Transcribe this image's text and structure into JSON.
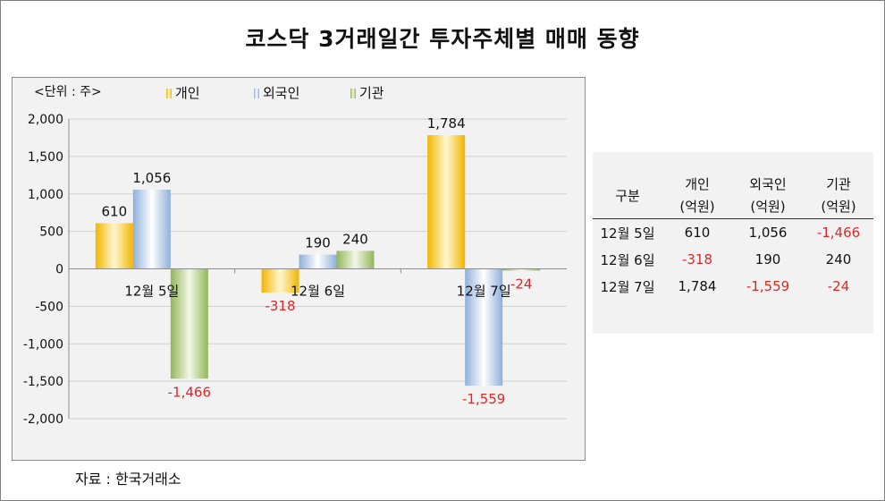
{
  "title": "코스닥 3거래일간 투자주체별 매매 동향",
  "unit_label": "<단위 : 주>",
  "source": "자료 : 한국거래소",
  "colors": {
    "individual": "#f5c21b",
    "foreign": "#9dbbe0",
    "institution": "#9bbb5e",
    "negative": "#d62a2a",
    "text": "#111111"
  },
  "chart_data": {
    "type": "bar",
    "categories": [
      "12월 5일",
      "12월 6일",
      "12월 7일"
    ],
    "series": [
      {
        "name": "개인",
        "values": [
          610,
          -318,
          1784
        ]
      },
      {
        "name": "외국인",
        "values": [
          1056,
          190,
          -1559
        ]
      },
      {
        "name": "기관",
        "values": [
          -1466,
          240,
          -24
        ]
      }
    ],
    "data_labels": [
      [
        "610",
        "1,056",
        "-1,466"
      ],
      [
        "-318",
        "190",
        "240"
      ],
      [
        "1,784",
        "-1,559",
        "-24"
      ]
    ],
    "ylim": [
      -2000,
      2000
    ],
    "yticks": [
      2000,
      1500,
      1000,
      500,
      0,
      -500,
      -1000,
      -1500,
      -2000
    ],
    "ytick_labels": [
      "2,000",
      "1,500",
      "1,000",
      "500",
      "0",
      "-500",
      "-1,000",
      "-1,500",
      "-2,000"
    ],
    "grid": true,
    "legend_position": "top"
  },
  "table": {
    "corner": "구분",
    "headers": [
      {
        "name": "개인",
        "unit": "(억원)"
      },
      {
        "name": "외국인",
        "unit": "(억원)"
      },
      {
        "name": "기관",
        "unit": "(억원)"
      }
    ],
    "rows": [
      {
        "date": "12월 5일",
        "cells": [
          {
            "text": "610",
            "neg": false
          },
          {
            "text": "1,056",
            "neg": false
          },
          {
            "text": "-1,466",
            "neg": true
          }
        ]
      },
      {
        "date": "12월 6일",
        "cells": [
          {
            "text": "-318",
            "neg": true
          },
          {
            "text": "190",
            "neg": false
          },
          {
            "text": "240",
            "neg": false
          }
        ]
      },
      {
        "date": "12월 7일",
        "cells": [
          {
            "text": "1,784",
            "neg": false
          },
          {
            "text": "-1,559",
            "neg": true
          },
          {
            "text": "-24",
            "neg": true
          }
        ]
      }
    ]
  }
}
